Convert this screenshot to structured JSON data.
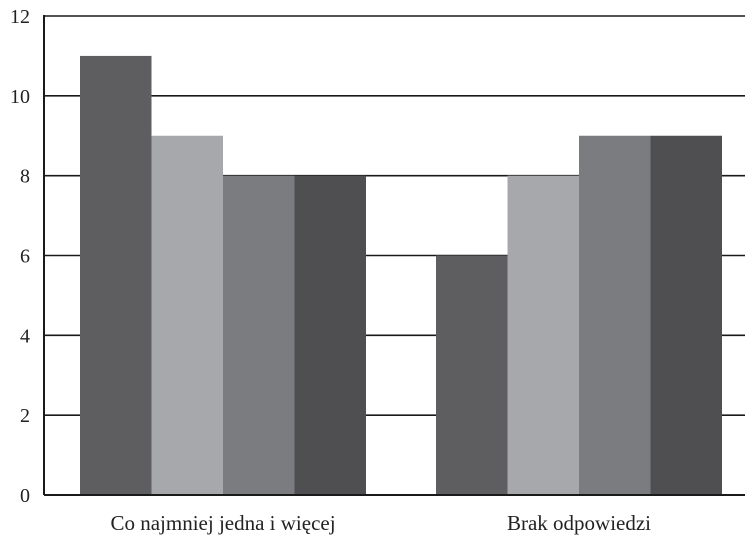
{
  "chart_data": {
    "type": "bar",
    "categories": [
      "Co najmniej jedna i więcej",
      "Brak odpowiedzi"
    ],
    "series": [
      {
        "values": [
          11,
          6
        ],
        "color": "#5e5e61"
      },
      {
        "values": [
          9,
          8
        ],
        "color": "#a7a8ab"
      },
      {
        "values": [
          8,
          9
        ],
        "color": "#7b7c80"
      },
      {
        "values": [
          8,
          9
        ],
        "color": "#4f4f52"
      }
    ],
    "yticks": [
      "0",
      "2",
      "4",
      "6",
      "8",
      "10",
      "12"
    ],
    "ylim": [
      0,
      12
    ],
    "grid": true,
    "legend": "none"
  }
}
